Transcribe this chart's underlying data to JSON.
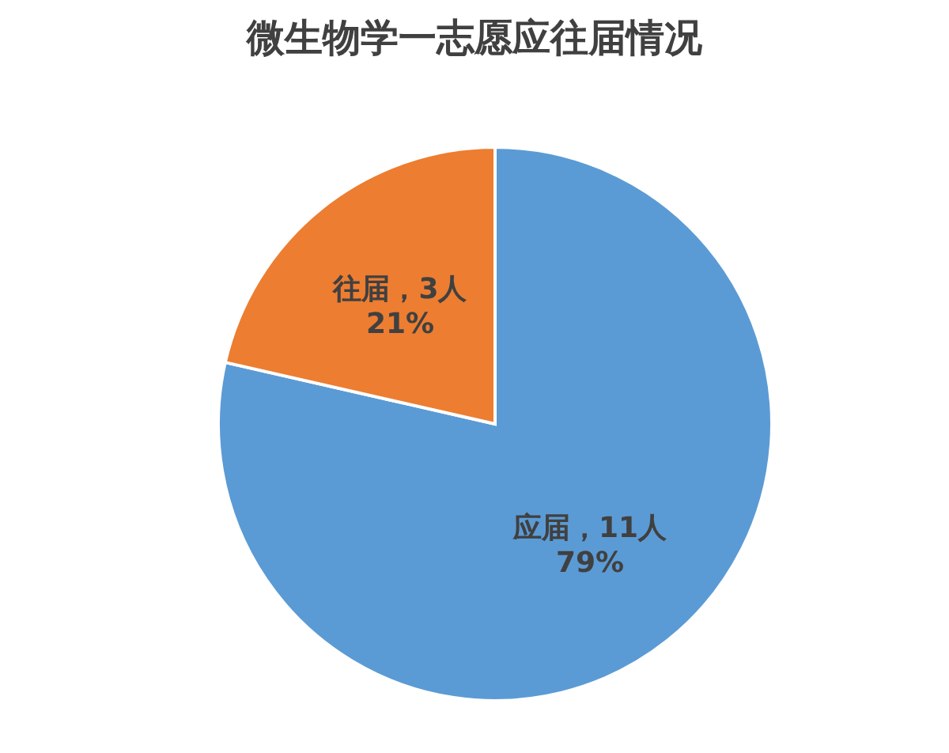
{
  "chart_data": {
    "type": "pie",
    "title": "微生物学一志愿应往届情况",
    "categories": [
      "应届",
      "往届"
    ],
    "values": [
      11,
      3
    ],
    "colors": [
      "#5b9bd5",
      "#ed7d31"
    ],
    "value_labels": [
      "，11人\n79%",
      "，3人\n21%"
    ],
    "legend": false
  }
}
